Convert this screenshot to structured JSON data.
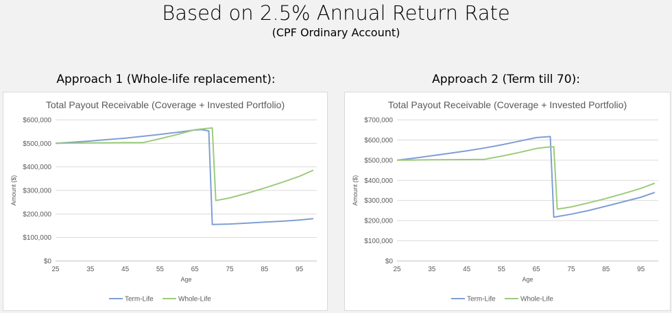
{
  "header": {
    "title": "Based on 2.5% Annual Return Rate",
    "subtitle": "(CPF Ordinary Account)"
  },
  "approaches": [
    {
      "label": "Approach 1 (Whole-life replacement):"
    },
    {
      "label": "Approach 2 (Term till 70):"
    }
  ],
  "colors": {
    "term": "#7f9ed4",
    "whole": "#9ccb7b"
  },
  "chart_data": [
    {
      "type": "line",
      "title": "Total Payout Receivable (Coverage + Invested Portfolio)",
      "xlabel": "Age",
      "ylabel": "Amount ($)",
      "xlim": [
        25,
        100
      ],
      "ylim": [
        0,
        600000
      ],
      "x_ticks": [
        25,
        35,
        45,
        55,
        65,
        75,
        85,
        95
      ],
      "y_ticks": [
        0,
        100000,
        200000,
        300000,
        400000,
        500000,
        600000
      ],
      "y_tick_labels": [
        "$0",
        "$100,000",
        "$200,000",
        "$300,000",
        "$400,000",
        "$500,000",
        "$600,000"
      ],
      "legend_position": "bottom",
      "grid": true,
      "series": [
        {
          "name": "Term-Life",
          "x": [
            25,
            30,
            35,
            40,
            45,
            50,
            55,
            60,
            65,
            67,
            69,
            70,
            75,
            80,
            85,
            90,
            95,
            99
          ],
          "values": [
            500000,
            505000,
            510000,
            516000,
            522000,
            530000,
            538000,
            547000,
            557000,
            558000,
            553000,
            155000,
            157000,
            161000,
            165000,
            169000,
            174000,
            180000
          ]
        },
        {
          "name": "Whole-Life",
          "x": [
            25,
            30,
            35,
            40,
            45,
            50,
            55,
            60,
            65,
            70,
            71,
            75,
            80,
            85,
            90,
            95,
            99
          ],
          "values": [
            500000,
            501000,
            502000,
            502500,
            503000,
            503000,
            520000,
            538000,
            558000,
            566000,
            257000,
            268000,
            288000,
            310000,
            334000,
            360000,
            386000
          ]
        }
      ]
    },
    {
      "type": "line",
      "title": "Total Payout Receivable (Coverage + Invested Portfolio)",
      "xlabel": "Age",
      "ylabel": "Amount ($)",
      "xlim": [
        25,
        100
      ],
      "ylim": [
        0,
        700000
      ],
      "x_ticks": [
        25,
        35,
        45,
        55,
        65,
        75,
        85,
        95
      ],
      "y_ticks": [
        0,
        100000,
        200000,
        300000,
        400000,
        500000,
        600000,
        700000
      ],
      "y_tick_labels": [
        "$0",
        "$100,000",
        "$200,000",
        "$300,000",
        "$400,000",
        "$500,000",
        "$600,000",
        "$700,000"
      ],
      "legend_position": "bottom",
      "grid": true,
      "series": [
        {
          "name": "Term-Life",
          "x": [
            25,
            30,
            35,
            40,
            45,
            50,
            55,
            60,
            65,
            69,
            70,
            75,
            80,
            85,
            90,
            95,
            99
          ],
          "values": [
            500000,
            510000,
            522000,
            534000,
            546000,
            560000,
            576000,
            594000,
            612000,
            617000,
            217000,
            232000,
            250000,
            272000,
            294000,
            316000,
            340000
          ]
        },
        {
          "name": "Whole-Life",
          "x": [
            25,
            30,
            35,
            40,
            45,
            50,
            55,
            60,
            65,
            69,
            70,
            71,
            75,
            80,
            85,
            90,
            95,
            99
          ],
          "values": [
            500000,
            501000,
            502000,
            502500,
            503000,
            504000,
            520000,
            538000,
            558000,
            566000,
            566000,
            257000,
            268000,
            288000,
            310000,
            334000,
            360000,
            386000
          ]
        }
      ]
    }
  ]
}
